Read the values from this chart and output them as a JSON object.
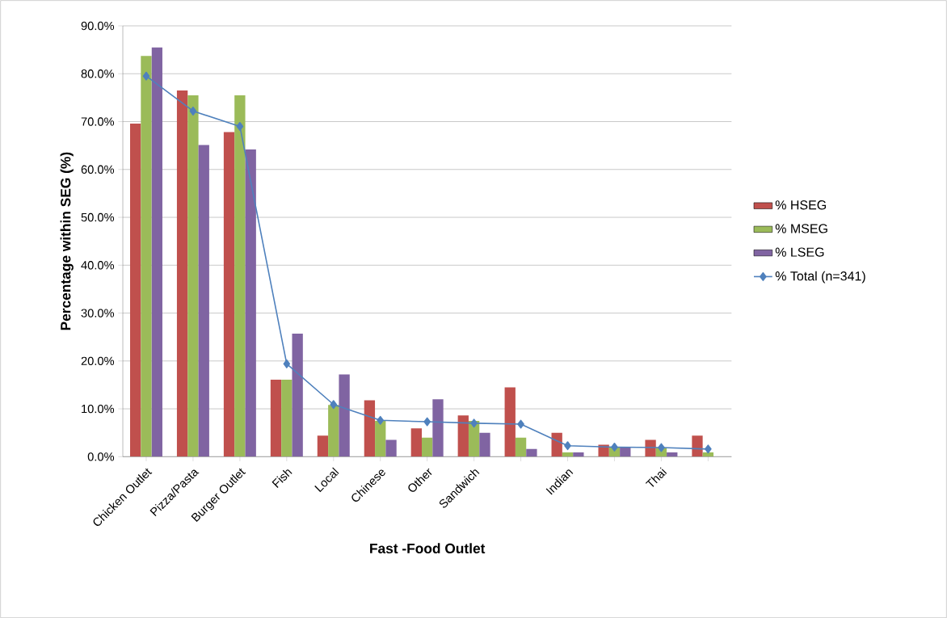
{
  "chart_data": {
    "type": "bar",
    "xlabel": "Fast -Food Outlet",
    "ylabel": "Percentage within SEG (%)",
    "categories": [
      "Chicken Outlet",
      "Pizza/Pasta",
      "Burger Outlet",
      "Fish",
      "Local",
      "Chinese",
      "Other",
      "Sandwich",
      null,
      "Indian",
      null,
      "Thai",
      null
    ],
    "series": [
      {
        "name": "% HSEG",
        "color": "#c0504d",
        "values": [
          69.6,
          76.5,
          67.8,
          16.1,
          4.4,
          11.8,
          5.9,
          8.6,
          14.5,
          5.0,
          2.5,
          3.5,
          4.4
        ]
      },
      {
        "name": "% MSEG",
        "color": "#9bbb59",
        "values": [
          83.7,
          75.5,
          75.5,
          16.1,
          10.8,
          7.5,
          4.0,
          7.5,
          4.0,
          0.9,
          2.0,
          1.9,
          0.9
        ]
      },
      {
        "name": "% LSEG",
        "color": "#8064a2",
        "values": [
          85.5,
          65.1,
          64.2,
          25.7,
          17.2,
          3.5,
          12.0,
          5.0,
          1.6,
          0.9,
          2.0,
          0.9,
          0.0
        ]
      },
      {
        "name": "% Total (n=341)",
        "type": "line",
        "color": "#4f81bd",
        "marker": "diamond",
        "line_style": "solid",
        "values": [
          79.5,
          72.2,
          69.0,
          19.4,
          10.9,
          7.6,
          7.3,
          7.0,
          6.8,
          2.3,
          2.0,
          1.9,
          1.6
        ]
      }
    ],
    "ylim": [
      0,
      90
    ],
    "yticks": [
      {
        "value": 0,
        "label": "0.0%"
      },
      {
        "value": 10,
        "label": "10.0%"
      },
      {
        "value": 20,
        "label": "20.0%"
      },
      {
        "value": 30,
        "label": "30.0%"
      },
      {
        "value": 40,
        "label": "40.0%"
      },
      {
        "value": 50,
        "label": "50.0%"
      },
      {
        "value": 60,
        "label": "60.0%"
      },
      {
        "value": 70,
        "label": "70.0%"
      },
      {
        "value": 80,
        "label": "80.0%"
      },
      {
        "value": 90,
        "label": "90.0%"
      }
    ],
    "grid": "y",
    "legend": "right"
  }
}
